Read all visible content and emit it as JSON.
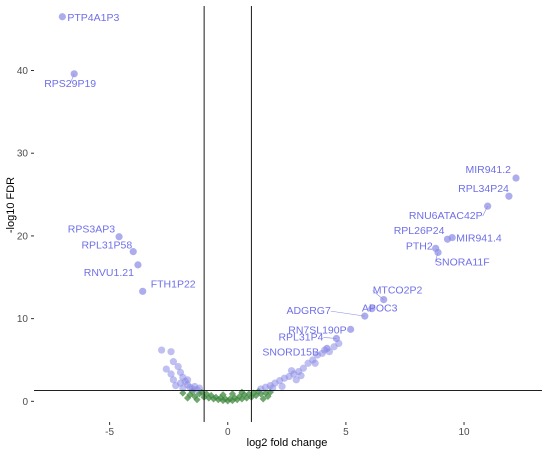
{
  "chart_data": {
    "type": "scatter",
    "xlabel": "log2 fold change",
    "ylabel": "-log10 FDR",
    "xlim": [
      -8.2,
      13.3
    ],
    "ylim": [
      -2.5,
      47.8
    ],
    "xticks": [
      -5,
      0,
      5,
      10
    ],
    "yticks": [
      0,
      10,
      20,
      30,
      40
    ],
    "vlines": [
      -1,
      1
    ],
    "hline": 1.3,
    "grid": false,
    "colors": {
      "significant": "#8a8ae6",
      "nonsignificant": "#3f8a3f",
      "label": "#6f6fe8",
      "line": "#000000"
    },
    "labeled_points": [
      {
        "label": "PTP4A1P3",
        "x": -7.0,
        "y": 46.5
      },
      {
        "label": "RPS29P19",
        "x": -6.5,
        "y": 39.6
      },
      {
        "label": "RPS3AP3",
        "x": -4.6,
        "y": 19.9
      },
      {
        "label": "RPL31P58",
        "x": -4.0,
        "y": 18.1
      },
      {
        "label": "RNVU1.21",
        "x": -3.8,
        "y": 16.5
      },
      {
        "label": "FTH1P22",
        "x": -3.6,
        "y": 13.3
      },
      {
        "label": "MIR941.2",
        "x": 12.2,
        "y": 27.0
      },
      {
        "label": "RPL34P24",
        "x": 11.9,
        "y": 24.8
      },
      {
        "label": "RNU6ATAC42P",
        "x": 11.0,
        "y": 23.6
      },
      {
        "label": "RPL26P24",
        "x": 9.3,
        "y": 19.6
      },
      {
        "label": "MIR941.4",
        "x": 9.5,
        "y": 19.8
      },
      {
        "label": "PTH2",
        "x": 8.8,
        "y": 18.5
      },
      {
        "label": "SNORA11F",
        "x": 8.9,
        "y": 18.0
      },
      {
        "label": "MTCO2P2",
        "x": 6.6,
        "y": 12.3
      },
      {
        "label": "ADGRG7",
        "x": 5.8,
        "y": 10.3
      },
      {
        "label": "APOC3",
        "x": 6.1,
        "y": 11.2
      },
      {
        "label": "RN7SL190P",
        "x": 5.2,
        "y": 8.7
      },
      {
        "label": "RPL31P4",
        "x": 4.6,
        "y": 7.6
      },
      {
        "label": "SNORD15B",
        "x": 4.2,
        "y": 6.4
      }
    ],
    "significant_points": [
      {
        "x": -2.8,
        "y": 6.2
      },
      {
        "x": -2.4,
        "y": 6.0
      },
      {
        "x": -2.3,
        "y": 4.8
      },
      {
        "x": -2.1,
        "y": 4.2
      },
      {
        "x": -2.6,
        "y": 3.9
      },
      {
        "x": -2.0,
        "y": 3.5
      },
      {
        "x": -1.9,
        "y": 2.9
      },
      {
        "x": -1.8,
        "y": 2.4
      },
      {
        "x": -2.3,
        "y": 2.6
      },
      {
        "x": -1.7,
        "y": 2.0
      },
      {
        "x": -1.6,
        "y": 1.7
      },
      {
        "x": -2.0,
        "y": 2.2
      },
      {
        "x": -1.5,
        "y": 1.5
      },
      {
        "x": -1.4,
        "y": 1.8
      },
      {
        "x": -1.3,
        "y": 1.4
      },
      {
        "x": -1.9,
        "y": 1.6
      },
      {
        "x": -1.2,
        "y": 1.6
      },
      {
        "x": -2.4,
        "y": 3.3
      },
      {
        "x": -1.7,
        "y": 2.6
      },
      {
        "x": -2.2,
        "y": 1.9
      },
      {
        "x": 1.4,
        "y": 1.5
      },
      {
        "x": 1.6,
        "y": 1.7
      },
      {
        "x": 1.8,
        "y": 1.9
      },
      {
        "x": 2.0,
        "y": 2.2
      },
      {
        "x": 2.2,
        "y": 2.5
      },
      {
        "x": 2.4,
        "y": 2.8
      },
      {
        "x": 2.6,
        "y": 3.0
      },
      {
        "x": 2.8,
        "y": 3.3
      },
      {
        "x": 2.7,
        "y": 3.7
      },
      {
        "x": 3.0,
        "y": 3.6
      },
      {
        "x": 3.2,
        "y": 4.0
      },
      {
        "x": 2.9,
        "y": 2.6
      },
      {
        "x": 3.4,
        "y": 4.6
      },
      {
        "x": 3.6,
        "y": 5.0
      },
      {
        "x": 3.8,
        "y": 5.6
      },
      {
        "x": 4.0,
        "y": 5.8
      },
      {
        "x": 4.3,
        "y": 6.0
      },
      {
        "x": 4.5,
        "y": 6.6
      },
      {
        "x": 4.7,
        "y": 7.0
      },
      {
        "x": 2.3,
        "y": 1.8
      },
      {
        "x": 3.1,
        "y": 3.1
      },
      {
        "x": 1.9,
        "y": 1.6
      },
      {
        "x": 3.7,
        "y": 4.6
      },
      {
        "x": 4.1,
        "y": 6.2
      }
    ],
    "nonsignificant_points": [
      {
        "x": -1.9,
        "y": 1.0
      },
      {
        "x": -1.6,
        "y": 0.8
      },
      {
        "x": -1.4,
        "y": 0.6
      },
      {
        "x": -1.2,
        "y": 0.9
      },
      {
        "x": -1.0,
        "y": 0.5
      },
      {
        "x": -0.8,
        "y": 0.4
      },
      {
        "x": -0.6,
        "y": 0.3
      },
      {
        "x": -0.4,
        "y": 0.2
      },
      {
        "x": -0.2,
        "y": 0.1
      },
      {
        "x": 0.0,
        "y": 0.05
      },
      {
        "x": 0.2,
        "y": 0.1
      },
      {
        "x": 0.4,
        "y": 0.2
      },
      {
        "x": 0.6,
        "y": 0.3
      },
      {
        "x": 0.8,
        "y": 0.4
      },
      {
        "x": 1.0,
        "y": 0.5
      },
      {
        "x": 1.2,
        "y": 0.7
      },
      {
        "x": 1.4,
        "y": 0.9
      },
      {
        "x": 1.6,
        "y": 1.0
      },
      {
        "x": 1.8,
        "y": 1.1
      },
      {
        "x": -1.5,
        "y": 1.2
      },
      {
        "x": -1.1,
        "y": 1.1
      },
      {
        "x": -0.9,
        "y": 0.9
      },
      {
        "x": -0.7,
        "y": 0.7
      },
      {
        "x": -0.5,
        "y": 0.5
      },
      {
        "x": -0.3,
        "y": 0.4
      },
      {
        "x": -0.1,
        "y": 0.3
      },
      {
        "x": 0.1,
        "y": 0.3
      },
      {
        "x": 0.3,
        "y": 0.4
      },
      {
        "x": 0.5,
        "y": 0.6
      },
      {
        "x": 0.7,
        "y": 0.8
      },
      {
        "x": 0.9,
        "y": 0.9
      },
      {
        "x": 1.1,
        "y": 1.0
      },
      {
        "x": 1.3,
        "y": 1.2
      },
      {
        "x": -1.7,
        "y": 0.4
      },
      {
        "x": -1.3,
        "y": 0.2
      },
      {
        "x": 1.5,
        "y": 0.3
      },
      {
        "x": 1.7,
        "y": 0.6
      },
      {
        "x": -0.2,
        "y": 0.8
      },
      {
        "x": 0.2,
        "y": 0.9
      },
      {
        "x": 0.6,
        "y": 1.1
      }
    ]
  }
}
